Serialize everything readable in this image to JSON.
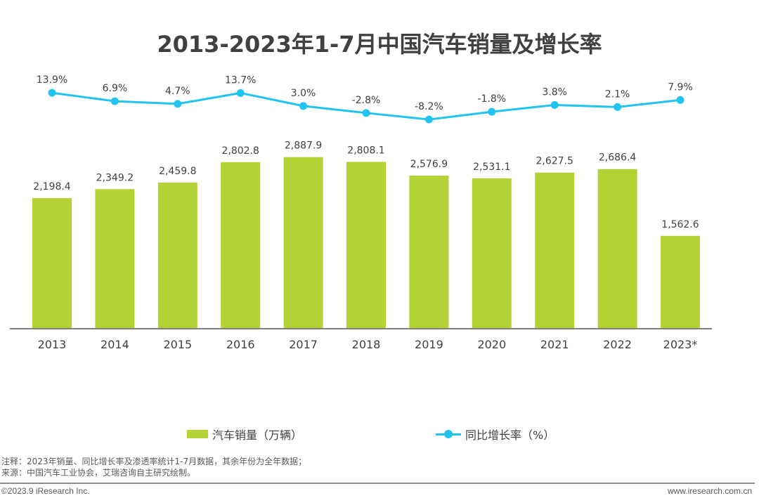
{
  "chart_data": {
    "type": "bar+line",
    "title": "2013-2023年1-7月中国汽车销量及增长率",
    "categories": [
      "2013",
      "2014",
      "2015",
      "2016",
      "2017",
      "2018",
      "2019",
      "2020",
      "2021",
      "2022",
      "2023*"
    ],
    "series": [
      {
        "name": "汽车销量（万辆）",
        "type": "bar",
        "values": [
          2198.4,
          2349.2,
          2459.8,
          2802.8,
          2887.9,
          2808.1,
          2576.9,
          2531.1,
          2627.5,
          2686.4,
          1562.6
        ],
        "labels": [
          "2,198.4",
          "2,349.2",
          "2,459.8",
          "2,802.8",
          "2,887.9",
          "2,808.1",
          "2,576.9",
          "2,531.1",
          "2,627.5",
          "2,686.4",
          "1,562.6"
        ],
        "color": "#b2d235"
      },
      {
        "name": "同比增长率（%）",
        "type": "line",
        "values": [
          13.9,
          6.9,
          4.7,
          13.7,
          3.0,
          -2.8,
          -8.2,
          -1.8,
          3.8,
          2.1,
          7.9
        ],
        "labels": [
          "13.9%",
          "6.9%",
          "4.7%",
          "13.7%",
          "3.0%",
          "-2.8%",
          "-8.2%",
          "-1.8%",
          "3.8%",
          "2.1%",
          "7.9%"
        ],
        "color": "#21c4f0"
      }
    ],
    "xlabel": "",
    "ylabel": "",
    "grid": false,
    "legend_position": "bottom"
  },
  "legend": {
    "bar_label": "汽车销量（万辆）",
    "line_label": "同比增长率（%）"
  },
  "notes": {
    "note": "注释：2023年销量、同比增长率及渗透率统计1-7月数据，其余年份为全年数据；",
    "source": "来源：中国汽车工业协会，艾瑞咨询自主研究绘制。"
  },
  "footer": {
    "copyright": "©2023.9 iResearch Inc.",
    "website": "www.iresearch.com.cn"
  }
}
